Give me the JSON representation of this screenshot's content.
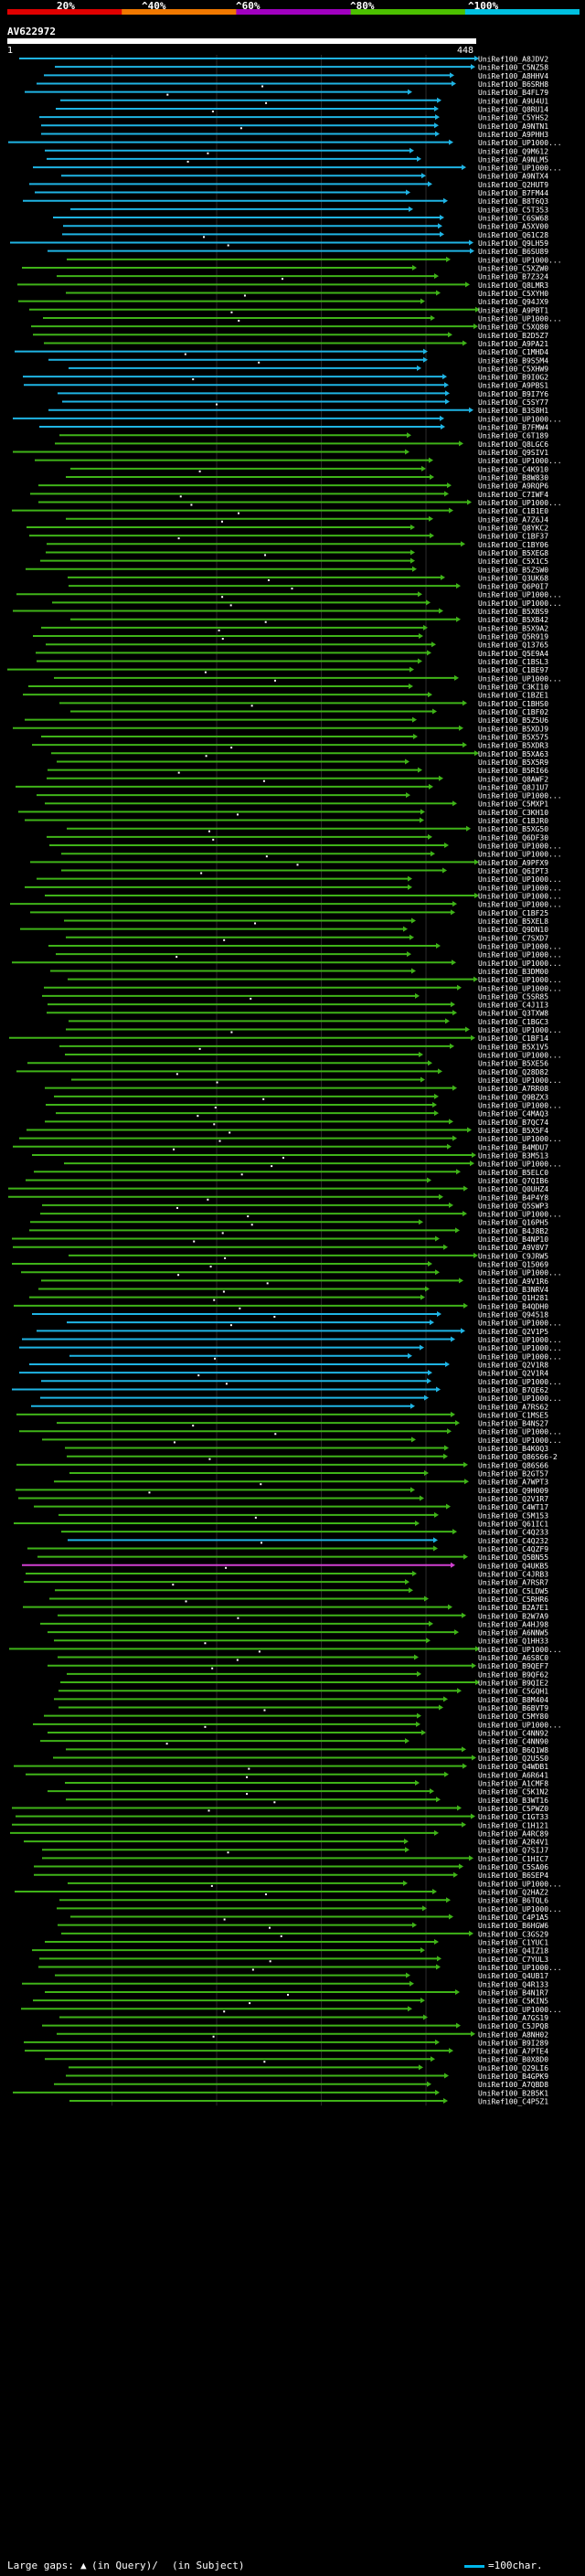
{
  "header": {
    "scale_labels": [
      "20%",
      "^40%",
      "^60%",
      "^80%",
      "^100%"
    ],
    "scale_colors": [
      "#e00000",
      "#f07800",
      "#a000c0",
      "#4cc000",
      "#00c0e0"
    ],
    "query_id": "AV622972",
    "query_start": "1",
    "query_end": "448"
  },
  "hit_colors": {
    "cyan": "#1fb4e4",
    "green": "#3fb318",
    "magenta": "#d040d0",
    "dark_green": "#1a6a10",
    "grid": "#2a2a2a"
  },
  "hits": [
    "UniRef100_A8JDV2",
    "UniRef100_C5NZ58",
    "UniRef100_A8HHV4",
    "UniRef100_B6SRH8",
    "UniRef100_B4FL79",
    "UniRef100_A9U4U1",
    "UniRef100_Q8RU14",
    "UniRef100_C5YHS2",
    "UniRef100_A9NTN1",
    "UniRef100_A9PHH3",
    "UniRef100_UP1000...",
    "UniRef100_Q9M612",
    "UniRef100_A9NLM5",
    "UniRef100_UP1000...",
    "UniRef100_A9NTX4",
    "UniRef100_Q2HUT9",
    "UniRef100_B7FM44",
    "UniRef100_B8T6Q3",
    "UniRef100_C5T353",
    "UniRef100_C6SW68",
    "UniRef100_A5XV00",
    "UniRef100_Q61C28",
    "UniRef100_Q9LH59",
    "UniRef100_B6SU89",
    "UniRef100_UP1000...",
    "UniRef100_C5XZW0",
    "UniRef100_B7Z324",
    "UniRef100_Q8LMR3",
    "UniRef100_C5XYH0",
    "UniRef100_Q94JX9",
    "UniRef100_A9PBT1",
    "UniRef100_UP1000...",
    "UniRef100_C5XQ80",
    "UniRef100_B2D5Z7",
    "UniRef100_A9PA21",
    "UniRef100_C1MHD4",
    "UniRef100_B9S5M4",
    "UniRef100_C5XHW9",
    "UniRef100_B9I0G2",
    "UniRef100_A9PBS1",
    "UniRef100_B9I7Y6",
    "UniRef100_C5SY77",
    "UniRef100_B3S8H1",
    "UniRef100_UP1000...",
    "UniRef100_B7FMW4",
    "UniRef100_C6T189",
    "UniRef100_Q8LGC6",
    "UniRef100_Q9SIV1",
    "UniRef100_UP1000...",
    "UniRef100_C4K910",
    "UniRef100_B8W830",
    "UniRef100_A9RQP6",
    "UniRef100_C7IWF4",
    "UniRef100_UP1000...",
    "UniRef100_C1B1E0",
    "UniRef100_A7Z6J4",
    "UniRef100_Q8YKC2",
    "UniRef100_C1BF37",
    "UniRef100_C1BY06",
    "UniRef100_B5XEG8",
    "UniRef100_C5X1C5",
    "UniRef100_B5ZSW0",
    "UniRef100_Q3UK68",
    "UniRef100_Q6P0I7",
    "UniRef100_UP1000...",
    "UniRef100_UP1000...",
    "UniRef100_B5XBS9",
    "UniRef100_B5XB42",
    "UniRef100_B5X9A2",
    "UniRef100_Q5R919",
    "UniRef100_Q13765",
    "UniRef100_Q5E9A4",
    "UniRef100_C1BSL3",
    "UniRef100_C1BE97",
    "UniRef100_UP1000...",
    "UniRef100_C3KI10",
    "UniRef100_C1BZE1",
    "UniRef100_C1BHS0",
    "UniRef100_C1BF02",
    "UniRef100_B5Z5U6",
    "UniRef100_B5XDJ9",
    "UniRef100_B5X575",
    "UniRef100_B5XDR3",
    "UniRef100_B5XA63",
    "UniRef100_B5X5R9",
    "UniRef100_B5RI66",
    "UniRef100_Q8AWF2",
    "UniRef100_Q8J1U7",
    "UniRef100_UP1000...",
    "UniRef100_C5MXP1",
    "UniRef100_C3KH10",
    "UniRef100_C1BJR0",
    "UniRef100_B5XG50",
    "UniRef100_Q6DF30",
    "UniRef100_UP1000...",
    "UniRef100_UP1000...",
    "UniRef100_A9PFX9",
    "UniRef100_Q6IPT3",
    "UniRef100_UP1000...",
    "UniRef100_UP1000...",
    "UniRef100_UP1000...",
    "UniRef100_UP1000...",
    "UniRef100_C1BF25",
    "UniRef100_B5XEL8",
    "UniRef100_Q9DN10",
    "UniRef100_C7SXD7",
    "UniRef100_UP1000...",
    "UniRef100_UP1000...",
    "UniRef100_UP1000...",
    "UniRef100_B3DM00",
    "UniRef100_UP1000...",
    "UniRef100_UP1000...",
    "UniRef100_C5SR85",
    "UniRef100_C4J1I3",
    "UniRef100_Q3TXW8",
    "UniRef100_C1BGC3",
    "UniRef100_UP1000...",
    "UniRef100_C1BF14",
    "UniRef100_B5X1V5",
    "UniRef100_UP1000...",
    "UniRef100_B5XE56",
    "UniRef100_Q28D82",
    "UniRef100_UP1000...",
    "UniRef100_A7RR08",
    "UniRef100_Q9BZX3",
    "UniRef100_UP1000...",
    "UniRef100_C4MAQ3",
    "UniRef100_B7QC74",
    "UniRef100_B5X5F4",
    "UniRef100_UP1000...",
    "UniRef100_B4MDU7",
    "UniRef100_B3M513",
    "UniRef100_UP1000...",
    "UniRef100_B5ELC0",
    "UniRef100_Q7QIB6",
    "UniRef100_Q0UHZ4",
    "UniRef100_B4P4Y8",
    "UniRef100_Q5SWP3",
    "UniRef100_UP1000...",
    "UniRef100_Q16PH5",
    "UniRef100_B4J8B2",
    "UniRef100_B4NP10",
    "UniRef100_A9V8V7",
    "UniRef100_C9JRW5",
    "UniRef100_Q15069",
    "UniRef100_UP1000...",
    "UniRef100_A9V1R6",
    "UniRef100_B3NRV4",
    "UniRef100_Q1H281",
    "UniRef100_B4QDH0",
    "UniRef100_Q94518",
    "UniRef100_UP1000...",
    "UniRef100_Q2V1P5",
    "UniRef100_UP1000...",
    "UniRef100_UP1000...",
    "UniRef100_UP1000...",
    "UniRef100_Q2V1R8",
    "UniRef100_Q2V1R4",
    "UniRef100_UP1000...",
    "UniRef100_B7QE62",
    "UniRef100_UP1000...",
    "UniRef100_A7RS62",
    "UniRef100_C1MSE5",
    "UniRef100_B4NS27",
    "UniRef100_UP1000...",
    "UniRef100_UP1000...",
    "UniRef100_B4K0Q3",
    "UniRef100_Q86S66-2",
    "UniRef100_Q86S66",
    "UniRef100_B2GT57",
    "UniRef100_A7WPT3",
    "UniRef100_Q9H009",
    "UniRef100_Q2V1R7",
    "UniRef100_C4WT17",
    "UniRef100_C5M153",
    "UniRef100_Q61IC1",
    "UniRef100_C4Q233",
    "UniRef100_C4Q232",
    "UniRef100_C4QZF9",
    "UniRef100_Q5BN55",
    "UniRef100_Q4UKB5",
    "UniRef100_C4JRB3",
    "UniRef100_A7RSR7",
    "UniRef100_C5LDW5",
    "UniRef100_C5RHR6",
    "UniRef100_B2A7E1",
    "UniRef100_B2W7A9",
    "UniRef100_A4HJ98",
    "UniRef100_A6NNW5",
    "UniRef100_Q1HH33",
    "UniRef100_UP1000...",
    "UniRef100_A6S8C0",
    "UniRef100_B9QEF7",
    "UniRef100_B9QF62",
    "UniRef100_B9QIE2",
    "UniRef100_C5GQH1",
    "UniRef100_B8M404",
    "UniRef100_B6BVT9",
    "UniRef100_C5MY80",
    "UniRef100_UP1000...",
    "UniRef100_C4NN92",
    "UniRef100_C4NN90",
    "UniRef100_B6Q1W8",
    "UniRef100_Q2U5S0",
    "UniRef100_Q4WDB1",
    "UniRef100_A6R641",
    "UniRef100_A1CMF8",
    "UniRef100_C5K1N2",
    "UniRef100_B3WT16",
    "UniRef100_C5PWZ0",
    "UniRef100_C1GT33",
    "UniRef100_C1H121",
    "UniRef100_A4RC89",
    "UniRef100_A2R4V1",
    "UniRef100_Q7SIJ7",
    "UniRef100_C1HIC7",
    "UniRef100_C5SA06",
    "UniRef100_B6SEP4",
    "UniRef100_UP1000...",
    "UniRef100_Q2HAZ2",
    "UniRef100_B6TQL6",
    "UniRef100_UP1000...",
    "UniRef100_C4P1A5",
    "UniRef100_B6HGW6",
    "UniRef100_C3GS29",
    "UniRef100_C1YUC1",
    "UniRef100_Q4IZ18",
    "UniRef100_C7YUL3",
    "UniRef100_UP1000...",
    "UniRef100_Q4UB17",
    "UniRef100_Q4R133",
    "UniRef100_B4N1R7",
    "UniRef100_C5KIN5",
    "UniRef100_UP1000...",
    "UniRef100_A7GS19",
    "UniRef100_C5JPQ8",
    "UniRef100_A8NH02",
    "UniRef100_B9I289",
    "UniRef100_A7PTE4",
    "UniRef100_B0X8D0",
    "UniRef100_Q29LI6",
    "UniRef100_B4GPK9",
    "UniRef100_A7QBD8",
    "UniRef100_B2B5K1",
    "UniRef100_C4P5Z1"
  ],
  "legend": {
    "label": "Large gaps:",
    "in_query": "(in Query)/",
    "in_subject": "(in Subject)",
    "scale_text": "=100char."
  }
}
